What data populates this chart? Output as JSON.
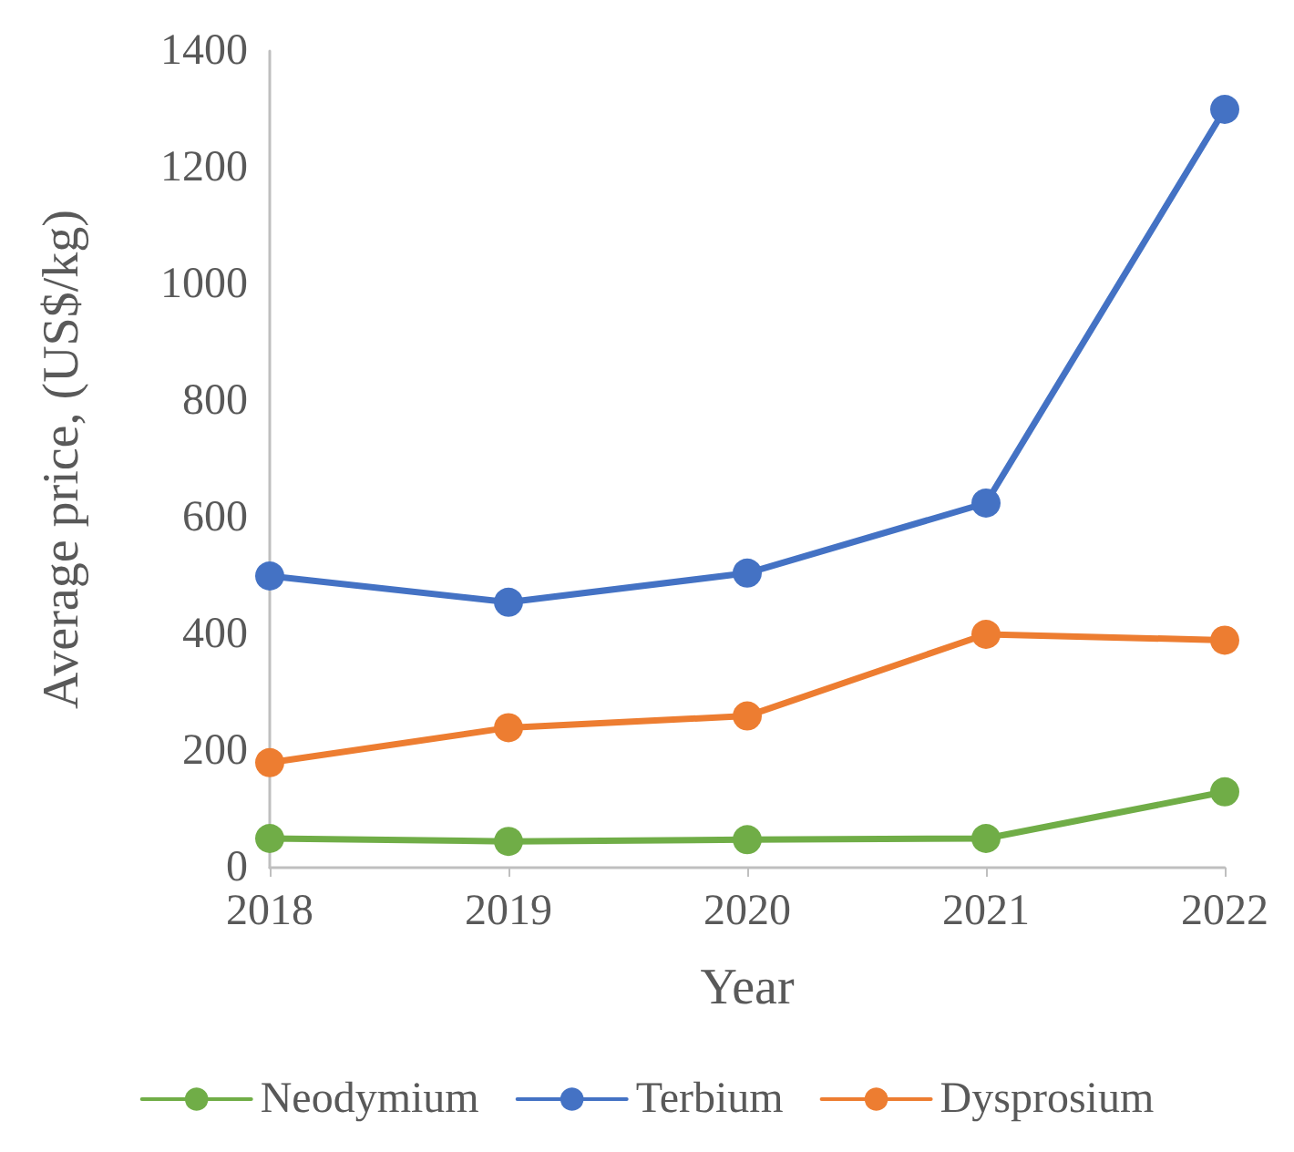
{
  "chart_data": {
    "type": "line",
    "xlabel": "Year",
    "ylabel": "Average price, (US$/kg)",
    "categories": [
      "2018",
      "2019",
      "2020",
      "2021",
      "2022"
    ],
    "series": [
      {
        "name": "Neodymium",
        "color": "#70ad47",
        "values": [
          50,
          45,
          48,
          50,
          130
        ]
      },
      {
        "name": "Terbium",
        "color": "#4472c4",
        "values": [
          500,
          455,
          505,
          625,
          1300
        ]
      },
      {
        "name": "Dysprosium",
        "color": "#ed7d31",
        "values": [
          180,
          240,
          260,
          400,
          390
        ]
      }
    ],
    "ylim": [
      0,
      1400
    ],
    "yticks": [
      0,
      200,
      400,
      600,
      800,
      1000,
      1200,
      1400
    ],
    "grid": false,
    "legend": "bottom",
    "marker": "circle",
    "line_style": "solid"
  }
}
